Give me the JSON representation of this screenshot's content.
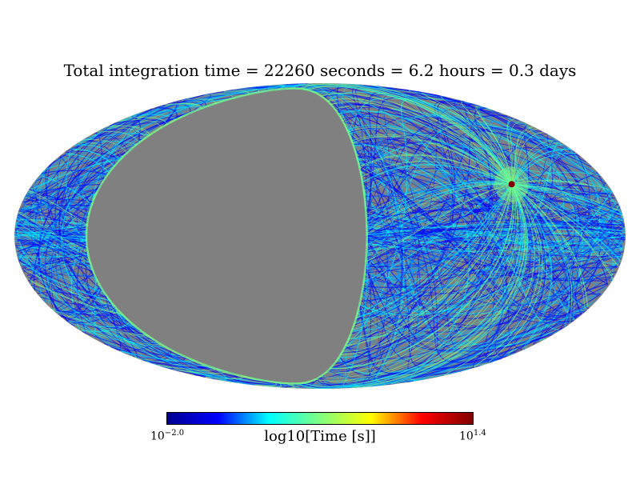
{
  "chart_data": {
    "type": "heatmap",
    "title": "Total integration time = 22260 seconds = 6.2 hours = 0.3 days",
    "projection": "mollweide",
    "colormap": "jet",
    "background_color": "#808080",
    "colorbar": {
      "label": "log10[Time [s]]",
      "min_base": "10",
      "min_exp": "−2.0",
      "max_base": "10",
      "max_exp": "1.4",
      "min_log": -2.0,
      "max_log": 1.4,
      "stops": [
        "#00008f",
        "#0000ff",
        "#00ffff",
        "#80ff80",
        "#ffff00",
        "#ff0000",
        "#800000"
      ]
    },
    "features": {
      "hotspot": {
        "lon": -120,
        "lat": 25,
        "log_time": 1.4
      },
      "unobserved_cap": {
        "center_lon": 55,
        "center_lat": 0,
        "radius_deg": 82
      }
    }
  }
}
